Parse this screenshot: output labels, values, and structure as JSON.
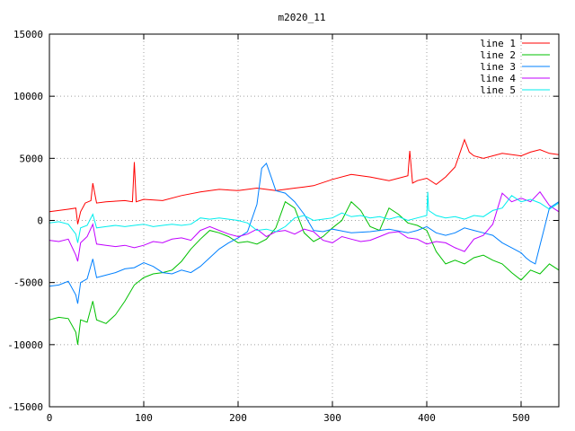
{
  "chart_data": {
    "type": "line",
    "title": "m2020_11",
    "xlabel": "",
    "ylabel": "",
    "xlim": [
      0,
      540
    ],
    "ylim": [
      -15000,
      15000
    ],
    "xticks": [
      0,
      100,
      200,
      300,
      400,
      500
    ],
    "yticks": [
      -15000,
      -10000,
      -5000,
      0,
      5000,
      10000,
      15000
    ],
    "grid": true,
    "legend": "top-right",
    "colors": {
      "line 1": "#ff0000",
      "line 2": "#00c000",
      "line 3": "#0080ff",
      "line 4": "#c000ff",
      "line 5": "#00eeee"
    },
    "series": [
      {
        "name": "line 1",
        "x": [
          0,
          20,
          28,
          30,
          33,
          38,
          44,
          46,
          50,
          60,
          80,
          88,
          90,
          92,
          100,
          120,
          140,
          160,
          180,
          200,
          220,
          240,
          260,
          270,
          280,
          300,
          320,
          340,
          360,
          380,
          382,
          385,
          390,
          400,
          410,
          420,
          430,
          440,
          445,
          450,
          460,
          480,
          500,
          510,
          520,
          530,
          540
        ],
        "y": [
          700,
          900,
          1000,
          -300,
          700,
          1400,
          1600,
          3000,
          1400,
          1500,
          1600,
          1500,
          4700,
          1500,
          1700,
          1600,
          2000,
          2300,
          2500,
          2400,
          2600,
          2400,
          2600,
          2700,
          2800,
          3300,
          3700,
          3500,
          3200,
          3600,
          5600,
          3000,
          3200,
          3400,
          2900,
          3500,
          4300,
          6500,
          5500,
          5200,
          5000,
          5400,
          5200,
          5500,
          5700,
          5400,
          5300
        ]
      },
      {
        "name": "line 2",
        "x": [
          0,
          10,
          20,
          28,
          30,
          33,
          40,
          46,
          50,
          60,
          70,
          80,
          90,
          100,
          110,
          120,
          130,
          140,
          150,
          160,
          170,
          180,
          190,
          200,
          210,
          220,
          230,
          240,
          250,
          260,
          270,
          280,
          290,
          300,
          310,
          320,
          330,
          340,
          350,
          360,
          370,
          380,
          390,
          400,
          410,
          420,
          430,
          440,
          450,
          460,
          470,
          480,
          490,
          500,
          510,
          520,
          530,
          540
        ],
        "y": [
          -8000,
          -7800,
          -7900,
          -9000,
          -10000,
          -8000,
          -8200,
          -6500,
          -8000,
          -8300,
          -7600,
          -6500,
          -5200,
          -4600,
          -4300,
          -4200,
          -4000,
          -3300,
          -2300,
          -1500,
          -800,
          -1000,
          -1300,
          -1800,
          -1700,
          -1900,
          -1500,
          -600,
          1500,
          1000,
          -1000,
          -1700,
          -1300,
          -600,
          0,
          1500,
          800,
          -500,
          -800,
          1000,
          500,
          -200,
          -400,
          -800,
          -2500,
          -3500,
          -3200,
          -3500,
          -3000,
          -2800,
          -3200,
          -3500,
          -4200,
          -4800,
          -4000,
          -4300,
          -3500,
          -4000
        ]
      },
      {
        "name": "line 3",
        "x": [
          0,
          10,
          20,
          28,
          30,
          33,
          40,
          46,
          50,
          60,
          70,
          80,
          90,
          100,
          110,
          120,
          130,
          140,
          150,
          160,
          170,
          180,
          190,
          200,
          210,
          220,
          225,
          230,
          235,
          240,
          250,
          260,
          270,
          280,
          290,
          300,
          320,
          340,
          360,
          380,
          390,
          400,
          410,
          420,
          430,
          440,
          450,
          460,
          470,
          480,
          490,
          500,
          505,
          510,
          515,
          520,
          525,
          530,
          540
        ],
        "y": [
          -5300,
          -5200,
          -4900,
          -6000,
          -6700,
          -5000,
          -4700,
          -3100,
          -4600,
          -4400,
          -4200,
          -3900,
          -3800,
          -3400,
          -3700,
          -4200,
          -4300,
          -4000,
          -4200,
          -3700,
          -3000,
          -2300,
          -1800,
          -1400,
          -900,
          1300,
          4200,
          4600,
          3500,
          2400,
          2200,
          1500,
          500,
          -800,
          -900,
          -700,
          -1000,
          -900,
          -700,
          -1000,
          -800,
          -500,
          -1000,
          -1200,
          -1000,
          -600,
          -800,
          -1000,
          -1200,
          -1800,
          -2200,
          -2600,
          -3000,
          -3300,
          -3500,
          -2000,
          -500,
          1000,
          1500
        ]
      },
      {
        "name": "line 4",
        "x": [
          0,
          10,
          20,
          28,
          30,
          33,
          40,
          46,
          50,
          60,
          70,
          80,
          90,
          100,
          110,
          120,
          130,
          140,
          150,
          160,
          170,
          180,
          190,
          200,
          210,
          220,
          230,
          240,
          250,
          260,
          270,
          280,
          290,
          300,
          310,
          320,
          330,
          340,
          350,
          360,
          370,
          380,
          390,
          400,
          410,
          420,
          430,
          440,
          450,
          460,
          470,
          480,
          490,
          500,
          510,
          520,
          530,
          540
        ],
        "y": [
          -1600,
          -1700,
          -1500,
          -2800,
          -3300,
          -1800,
          -1300,
          -300,
          -1900,
          -2000,
          -2100,
          -2000,
          -2200,
          -2000,
          -1700,
          -1800,
          -1500,
          -1400,
          -1600,
          -800,
          -500,
          -800,
          -1100,
          -1300,
          -1100,
          -700,
          -1300,
          -900,
          -800,
          -1100,
          -700,
          -900,
          -1600,
          -1800,
          -1300,
          -1500,
          -1700,
          -1600,
          -1300,
          -1000,
          -900,
          -1400,
          -1500,
          -1900,
          -1700,
          -1800,
          -2200,
          -2500,
          -1500,
          -1200,
          -300,
          2200,
          1500,
          1800,
          1500,
          2300,
          1200,
          700
        ]
      },
      {
        "name": "line 5",
        "x": [
          0,
          10,
          20,
          28,
          30,
          33,
          40,
          46,
          50,
          60,
          70,
          80,
          90,
          100,
          110,
          120,
          130,
          140,
          150,
          160,
          170,
          180,
          190,
          200,
          210,
          220,
          230,
          240,
          250,
          260,
          270,
          280,
          290,
          300,
          310,
          320,
          330,
          340,
          350,
          360,
          370,
          380,
          390,
          400,
          401,
          402,
          410,
          420,
          430,
          440,
          450,
          460,
          470,
          480,
          490,
          500,
          510,
          520,
          530,
          540
        ],
        "y": [
          -200,
          -100,
          -300,
          -1100,
          -1800,
          -600,
          -400,
          500,
          -600,
          -500,
          -400,
          -500,
          -400,
          -300,
          -500,
          -400,
          -300,
          -400,
          -300,
          200,
          100,
          200,
          100,
          0,
          -200,
          -800,
          -700,
          -900,
          -500,
          200,
          400,
          0,
          100,
          200,
          600,
          300,
          400,
          200,
          300,
          100,
          300,
          0,
          200,
          400,
          2300,
          800,
          400,
          200,
          300,
          100,
          400,
          300,
          800,
          1000,
          2000,
          1500,
          1700,
          1400,
          900,
          1400
        ]
      }
    ]
  }
}
